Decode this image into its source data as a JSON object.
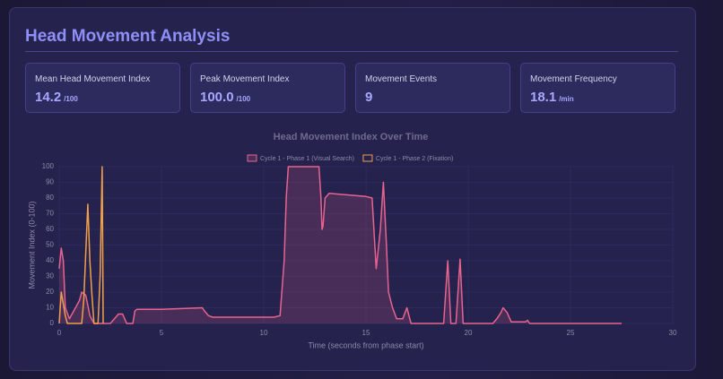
{
  "header": {
    "title": "Head Movement Analysis"
  },
  "cards": [
    {
      "label": "Mean Head Movement Index",
      "value": "14.2",
      "unit": "/100"
    },
    {
      "label": "Peak Movement Index",
      "value": "100.0",
      "unit": "/100"
    },
    {
      "label": "Movement Events",
      "value": "9"
    },
    {
      "label": "Movement Frequency",
      "value": "18.1",
      "unit": "/min"
    }
  ],
  "chart_data": {
    "type": "line",
    "title": "Head Movement Index Over Time",
    "x_label": "Time (seconds from phase start)",
    "y_label": "Movement Index (0-100)",
    "xlim": [
      0,
      30
    ],
    "ylim": [
      0,
      100
    ],
    "xticks": [
      0,
      5,
      10,
      15,
      20,
      25,
      30
    ],
    "yticks": [
      0,
      10,
      20,
      30,
      40,
      50,
      60,
      70,
      80,
      90,
      100
    ],
    "grid": true,
    "series": [
      {
        "name": "Cycle 1 - Phase 1 (Visual Search)",
        "color": "#e8648f",
        "fill": true,
        "x": [
          0,
          0.1,
          0.2,
          0.3,
          0.5,
          0.8,
          1.0,
          1.1,
          1.3,
          1.5,
          1.7,
          2.5,
          2.9,
          3.1,
          3.3,
          3.6,
          3.7,
          3.8,
          5,
          7,
          7.1,
          7.3,
          7.5,
          9,
          10.5,
          10.8,
          11.0,
          11.1,
          11.2,
          12.7,
          12.8,
          12.85,
          12.9,
          13.0,
          13.2,
          15.0,
          15.3,
          15.5,
          15.7,
          15.85,
          16.0,
          16.1,
          16.3,
          16.5,
          16.8,
          17.0,
          17.2,
          18.8,
          19.0,
          19.15,
          19.4,
          19.6,
          19.75,
          21.2,
          21.4,
          21.6,
          21.7,
          21.9,
          22.1,
          22.8,
          22.9,
          23.0,
          27.5
        ],
        "values": [
          35,
          48,
          40,
          10,
          3,
          10,
          15,
          20,
          18,
          5,
          0,
          0,
          6,
          6,
          0,
          0,
          8,
          9,
          9,
          10,
          8,
          5,
          4,
          4,
          4,
          5,
          40,
          80,
          100,
          100,
          80,
          60,
          62,
          80,
          83,
          81,
          80,
          35,
          60,
          90,
          50,
          20,
          10,
          3,
          3,
          10,
          0,
          0,
          40,
          0,
          0,
          41,
          0,
          0,
          3,
          7,
          10,
          7,
          1,
          1,
          2,
          0,
          0
        ]
      },
      {
        "name": "Cycle 1 - Phase 2 (Fixation)",
        "color": "#f0a04b",
        "fill": false,
        "x": [
          0,
          0.1,
          0.3,
          0.4,
          1.1,
          1.2,
          1.4,
          1.5,
          1.6,
          1.7,
          1.9,
          2.0,
          2.1,
          2.15
        ],
        "values": [
          0,
          20,
          5,
          0,
          0,
          15,
          76,
          40,
          18,
          0,
          0,
          30,
          100,
          0
        ]
      }
    ]
  }
}
